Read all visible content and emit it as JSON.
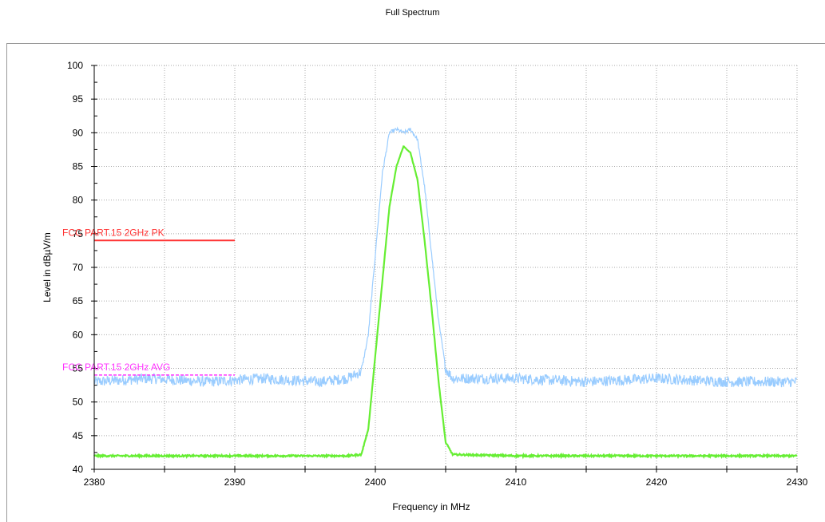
{
  "title": "Full Spectrum",
  "chart_data": {
    "type": "line",
    "title": "Full Spectrum",
    "xlabel": "Frequency in MHz",
    "ylabel": "Level in dBµV/m",
    "xlim": [
      2380,
      2430
    ],
    "ylim": [
      40,
      100
    ],
    "x_ticks": [
      2380,
      2390,
      2400,
      2410,
      2420,
      2430
    ],
    "y_ticks": [
      40,
      45,
      50,
      55,
      60,
      65,
      70,
      75,
      80,
      85,
      90,
      95,
      100
    ],
    "grid": true,
    "limits": [
      {
        "name": "FCC PART.15 2GHz  PK",
        "value": 74,
        "x_range": [
          2380,
          2390
        ],
        "color": "#ff3333"
      },
      {
        "name": "FCC PART.15 2GHz  AVG",
        "value": 54,
        "x_range": [
          2380,
          2390
        ],
        "color": "#ff33ff"
      }
    ],
    "series": [
      {
        "color": "#99ccff",
        "x": [
          2380,
          2384,
          2388,
          2392,
          2396,
          2398,
          2399,
          2399.5,
          2400,
          2400.5,
          2401,
          2401.5,
          2402,
          2402.5,
          2403,
          2403.5,
          2404,
          2404.5,
          2405,
          2405.5,
          2410,
          2415,
          2420,
          2425,
          2430
        ],
        "values": [
          53,
          53.5,
          53,
          53.5,
          53,
          53.5,
          54.5,
          60,
          72,
          84,
          90,
          90.5,
          90,
          90.5,
          89,
          82,
          72,
          62,
          55,
          53.5,
          53.5,
          53,
          53.5,
          53,
          53
        ]
      },
      {
        "color": "#66ee33",
        "x": [
          2380,
          2385,
          2390,
          2395,
          2398,
          2399,
          2399.5,
          2400,
          2400.5,
          2401,
          2401.5,
          2402,
          2402.5,
          2403,
          2403.5,
          2404,
          2404.5,
          2405,
          2405.5,
          2410,
          2420,
          2430
        ],
        "values": [
          42,
          42,
          42,
          42,
          42,
          42.2,
          46,
          57,
          68,
          79,
          85,
          88,
          87,
          83,
          74,
          64,
          53,
          44,
          42.2,
          42,
          42,
          42
        ]
      }
    ]
  }
}
